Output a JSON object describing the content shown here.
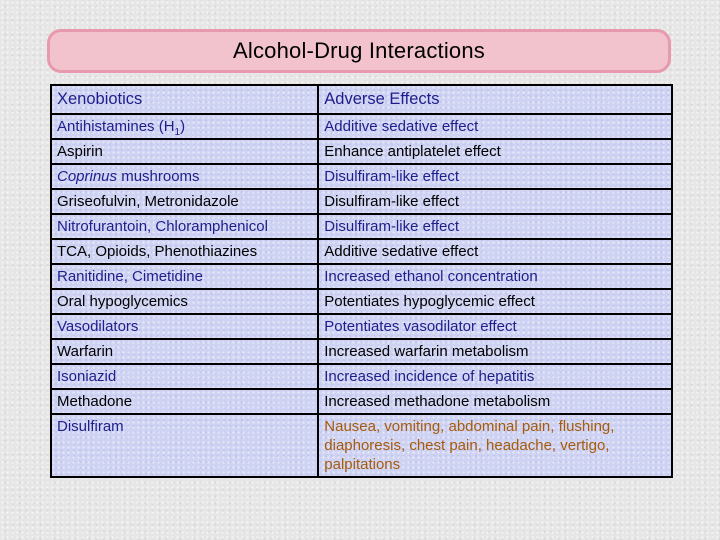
{
  "title": "Alcohol-Drug Interactions",
  "table": {
    "headers": {
      "xenobiotics": "Xenobiotics",
      "effects": "Adverse Effects"
    },
    "rows": [
      {
        "drug": "Antihistamines (H",
        "drug_sub": "1",
        "drug_tail": ")",
        "effect": "Additive sedative effect",
        "drug_color": "blue",
        "effect_color": "blue"
      },
      {
        "drug": "Aspirin",
        "effect": "Enhance antiplatelet effect",
        "drug_color": "black",
        "effect_color": "black"
      },
      {
        "drug_italic": "Coprinus",
        "drug": " mushrooms",
        "effect": "Disulfiram-like effect",
        "drug_color": "blue",
        "effect_color": "blue"
      },
      {
        "drug": "Griseofulvin, Metronidazole",
        "effect": "Disulfiram-like effect",
        "drug_color": "black",
        "effect_color": "black"
      },
      {
        "drug": "Nitrofurantoin, Chloramphenicol",
        "effect": "Disulfiram-like effect",
        "drug_color": "blue",
        "effect_color": "blue"
      },
      {
        "drug": "TCA, Opioids, Phenothiazines",
        "effect": "Additive sedative effect",
        "drug_color": "black",
        "effect_color": "black"
      },
      {
        "drug": "Ranitidine, Cimetidine",
        "effect": "Increased ethanol concentration",
        "drug_color": "blue",
        "effect_color": "blue"
      },
      {
        "drug": "Oral hypoglycemics",
        "effect": "Potentiates hypoglycemic effect",
        "drug_color": "black",
        "effect_color": "black"
      },
      {
        "drug": "Vasodilators",
        "effect": "Potentiates vasodilator effect",
        "drug_color": "blue",
        "effect_color": "blue"
      },
      {
        "drug": "Warfarin",
        "effect": "Increased warfarin metabolism",
        "drug_color": "black",
        "effect_color": "black"
      },
      {
        "drug": "Isoniazid",
        "effect": "Increased incidence of hepatitis",
        "drug_color": "blue",
        "effect_color": "blue"
      },
      {
        "drug": "Methadone",
        "effect": "Increased methadone metabolism",
        "drug_color": "black",
        "effect_color": "black"
      },
      {
        "drug": "Disulfiram",
        "effect": "Nausea, vomiting, abdominal pain, flushing, diaphoresis, chest pain, headache, vertigo, palpitations",
        "drug_color": "blue",
        "effect_color": "brown"
      }
    ]
  },
  "colors": {
    "blue": "#1e1e8c",
    "black": "#000000",
    "brown": "#a65a0a",
    "title_fill": "#f3c3cd",
    "title_border": "#e79aad",
    "table_fill": "#cfd3f3"
  }
}
